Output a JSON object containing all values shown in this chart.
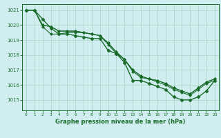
{
  "title": "Graphe pression niveau de la mer (hPa)",
  "background_color": "#d0eef0",
  "plot_bg_color": "#d0eef0",
  "grid_color": "#b0d8cc",
  "line_color": "#1a6b2a",
  "marker_color": "#1a6b2a",
  "ylim": [
    1014.3,
    1021.4
  ],
  "xlim": [
    -0.5,
    23.5
  ],
  "yticks": [
    1015,
    1016,
    1017,
    1018,
    1019,
    1020,
    1021
  ],
  "xticks": [
    0,
    1,
    2,
    3,
    4,
    5,
    6,
    7,
    8,
    9,
    10,
    11,
    12,
    13,
    14,
    15,
    16,
    17,
    18,
    19,
    20,
    21,
    22,
    23
  ],
  "series": [
    [
      1021.0,
      1021.0,
      1020.4,
      1019.8,
      1019.4,
      1019.4,
      1019.3,
      1019.2,
      1019.1,
      1019.1,
      1018.3,
      1018.1,
      1017.5,
      1016.3,
      1016.3,
      1016.1,
      1015.9,
      1015.7,
      1015.2,
      1015.0,
      1015.0,
      1015.2,
      1015.6,
      1016.3
    ],
    [
      1021.0,
      1021.0,
      1019.9,
      1019.4,
      1019.4,
      1019.5,
      1019.5,
      1019.5,
      1019.4,
      1019.3,
      1018.7,
      1018.1,
      1017.7,
      1016.9,
      1016.5,
      1016.4,
      1016.2,
      1016.0,
      1015.7,
      1015.5,
      1015.3,
      1015.7,
      1016.1,
      1016.3
    ],
    [
      1021.0,
      1021.0,
      1020.0,
      1019.9,
      1019.6,
      1019.6,
      1019.6,
      1019.5,
      1019.4,
      1019.3,
      1018.8,
      1018.2,
      1017.7,
      1017.0,
      1016.6,
      1016.4,
      1016.3,
      1016.1,
      1015.8,
      1015.6,
      1015.4,
      1015.8,
      1016.2,
      1016.4
    ],
    [
      1021.0,
      1021.0,
      1020.0,
      1019.9,
      1019.6,
      1019.6,
      1019.6,
      1019.5,
      1019.4,
      1019.3,
      1018.8,
      1018.2,
      1017.7,
      1017.0,
      1016.6,
      1016.4,
      1016.3,
      1016.1,
      1015.8,
      1015.6,
      1015.4,
      1015.8,
      1016.2,
      1016.4
    ]
  ],
  "title_fontsize": 6.0,
  "xlabel_fontsize": 5.0,
  "ylabel_fontsize": 5.5
}
